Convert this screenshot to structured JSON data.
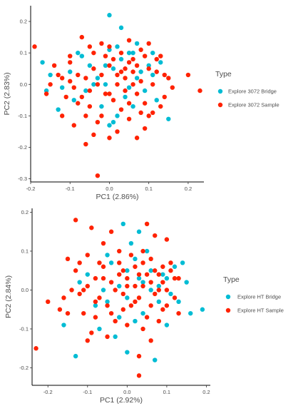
{
  "chart_data": [
    {
      "type": "scatter",
      "xlabel": "PC1 (2.86%)",
      "ylabel": "PC2 (2.83%)",
      "xlim": [
        -0.2,
        0.24
      ],
      "ylim": [
        -0.31,
        0.25
      ],
      "xticks": [
        -0.2,
        -0.1,
        0.0,
        0.1,
        0.2
      ],
      "xtick_labels": [
        "-0.2",
        "-0.1",
        "0.0",
        "0.1",
        "0.2"
      ],
      "yticks": [
        -0.3,
        -0.2,
        -0.1,
        0.0,
        0.1,
        0.2
      ],
      "ytick_labels": [
        "-0.3",
        "-0.2",
        "-0.1",
        "0.0",
        "0.1",
        "0.2"
      ],
      "legend": {
        "title": "Type",
        "position": "right"
      },
      "series": [
        {
          "name": "Explore 3072 Bridge",
          "color": "#00bcd4",
          "points": [
            [
              0.0,
              0.22
            ],
            [
              0.03,
              0.18
            ],
            [
              -0.17,
              0.07
            ],
            [
              -0.15,
              0.03
            ],
            [
              -0.12,
              -0.01
            ],
            [
              -0.1,
              0.04
            ],
            [
              -0.07,
              0.09
            ],
            [
              -0.05,
              0.06
            ],
            [
              -0.03,
              0.02
            ],
            [
              -0.01,
              0.0
            ],
            [
              0.01,
              0.05
            ],
            [
              0.03,
              0.08
            ],
            [
              0.05,
              0.1
            ],
            [
              0.07,
              0.02
            ],
            [
              0.09,
              -0.02
            ],
            [
              0.1,
              0.06
            ],
            [
              0.11,
              0.1
            ],
            [
              0.12,
              -0.05
            ],
            [
              0.15,
              -0.11
            ],
            [
              -0.13,
              -0.08
            ],
            [
              -0.09,
              -0.05
            ],
            [
              -0.06,
              -0.02
            ],
            [
              -0.04,
              0.0
            ],
            [
              0.0,
              -0.13
            ],
            [
              0.02,
              -0.1
            ],
            [
              0.04,
              -0.04
            ],
            [
              0.06,
              -0.07
            ],
            [
              0.08,
              0.04
            ],
            [
              -0.02,
              -0.07
            ],
            [
              0.01,
              -0.12
            ],
            [
              0.05,
              -0.01
            ],
            [
              0.02,
              0.12
            ],
            [
              -0.08,
              0.1
            ],
            [
              0.11,
              0.03
            ],
            [
              0.13,
              0.07
            ],
            [
              -0.16,
              -0.02
            ],
            [
              0.0,
              0.11
            ],
            [
              0.07,
              0.13
            ],
            [
              -0.01,
              0.06
            ],
            [
              0.06,
              0.1
            ]
          ]
        },
        {
          "name": "Explore 3072 Sample",
          "color": "#ff2200",
          "points": [
            [
              -0.19,
              0.12
            ],
            [
              -0.16,
              -0.03
            ],
            [
              -0.14,
              0.06
            ],
            [
              -0.12,
              0.02
            ],
            [
              -0.1,
              0.01
            ],
            [
              -0.08,
              -0.06
            ],
            [
              -0.06,
              -0.1
            ],
            [
              -0.04,
              -0.16
            ],
            [
              -0.02,
              -0.1
            ],
            [
              0.0,
              0.06
            ],
            [
              0.02,
              0.03
            ],
            [
              0.04,
              0.05
            ],
            [
              0.06,
              0.08
            ],
            [
              0.08,
              0.01
            ],
            [
              0.1,
              -0.1
            ],
            [
              0.12,
              0.04
            ],
            [
              0.14,
              0.03
            ],
            [
              0.16,
              -0.01
            ],
            [
              0.23,
              -0.02
            ],
            [
              0.2,
              0.03
            ],
            [
              -0.07,
              0.15
            ],
            [
              -0.04,
              0.1
            ],
            [
              -0.02,
              0.13
            ],
            [
              0.0,
              0.12
            ],
            [
              0.03,
              0.1
            ],
            [
              0.05,
              0.14
            ],
            [
              0.07,
              0.06
            ],
            [
              0.09,
              0.09
            ],
            [
              0.11,
              0.0
            ],
            [
              0.13,
              -0.07
            ],
            [
              -0.11,
              -0.04
            ],
            [
              -0.09,
              -0.01
            ],
            [
              -0.05,
              -0.07
            ],
            [
              -0.03,
              0.0
            ],
            [
              -0.01,
              -0.03
            ],
            [
              0.01,
              -0.05
            ],
            [
              0.03,
              -0.08
            ],
            [
              0.05,
              -0.11
            ],
            [
              0.07,
              -0.17
            ],
            [
              0.09,
              -0.14
            ],
            [
              -0.13,
              0.03
            ],
            [
              -0.1,
              0.07
            ],
            [
              -0.06,
              0.02
            ],
            [
              -0.03,
              -0.12
            ],
            [
              0.0,
              -0.17
            ],
            [
              0.02,
              0.0
            ],
            [
              0.04,
              -0.02
            ],
            [
              0.06,
              0.0
            ],
            [
              0.08,
              0.11
            ],
            [
              0.1,
              0.05
            ],
            [
              -0.08,
              0.03
            ],
            [
              -0.05,
              0.12
            ],
            [
              0.01,
              0.08
            ],
            [
              0.03,
              0.04
            ],
            [
              -0.01,
              0.09
            ],
            [
              0.05,
              -0.06
            ],
            [
              0.07,
              -0.03
            ],
            [
              0.09,
              -0.06
            ],
            [
              0.11,
              -0.09
            ],
            [
              0.14,
              -0.04
            ],
            [
              -0.06,
              -0.19
            ],
            [
              -0.12,
              -0.1
            ],
            [
              -0.15,
              0.0
            ],
            [
              -0.09,
              -0.13
            ],
            [
              0.0,
              -0.03
            ],
            [
              -0.04,
              0.05
            ],
            [
              0.06,
              0.04
            ],
            [
              0.1,
              0.13
            ],
            [
              0.12,
              0.08
            ],
            [
              0.02,
              -0.15
            ],
            [
              -0.02,
              0.03
            ],
            [
              0.04,
              0.02
            ],
            [
              -0.07,
              -0.04
            ],
            [
              0.08,
              -0.09
            ],
            [
              -0.05,
              -0.02
            ],
            [
              -0.03,
              -0.29
            ],
            [
              0.13,
              0.09
            ],
            [
              0.15,
              0.02
            ],
            [
              -0.1,
              0.09
            ],
            [
              0.05,
              0.07
            ]
          ]
        }
      ]
    },
    {
      "type": "scatter",
      "xlabel": "PC1 (2.92%)",
      "ylabel": "PC2 (2.84%)",
      "xlim": [
        -0.24,
        0.21
      ],
      "ylim": [
        -0.245,
        0.21
      ],
      "xticks": [
        -0.2,
        -0.1,
        0.0,
        0.1,
        0.2
      ],
      "xtick_labels": [
        "-0.2",
        "-0.1",
        "0.0",
        "0.1",
        "0.2"
      ],
      "yticks": [
        -0.2,
        -0.1,
        0.0,
        0.1,
        0.2
      ],
      "ytick_labels": [
        "-0.2",
        "-0.1",
        "0.0",
        "0.1",
        "0.2"
      ],
      "legend": {
        "title": "Type",
        "position": "right"
      },
      "series": [
        {
          "name": "Explore HT Bridge",
          "color": "#00bcd4",
          "points": [
            [
              -0.16,
              -0.09
            ],
            [
              -0.13,
              -0.17
            ],
            [
              -0.07,
              -0.1
            ],
            [
              -0.05,
              -0.03
            ],
            [
              -0.02,
              0.01
            ],
            [
              0.0,
              0.05
            ],
            [
              0.02,
              0.08
            ],
            [
              0.04,
              0.02
            ],
            [
              0.06,
              0.05
            ],
            [
              0.08,
              -0.03
            ],
            [
              0.1,
              0.03
            ],
            [
              0.12,
              0.06
            ],
            [
              0.14,
              0.07
            ],
            [
              0.16,
              -0.06
            ],
            [
              0.19,
              -0.05
            ],
            [
              -0.1,
              0.04
            ],
            [
              -0.12,
              0.02
            ],
            [
              -0.03,
              -0.12
            ],
            [
              0.0,
              -0.16
            ],
            [
              0.02,
              -0.08
            ],
            [
              0.04,
              -0.06
            ],
            [
              0.06,
              0.0
            ],
            [
              0.08,
              0.01
            ],
            [
              -0.01,
              0.17
            ],
            [
              0.03,
              0.15
            ],
            [
              -0.06,
              0.0
            ],
            [
              0.1,
              -0.09
            ],
            [
              0.13,
              -0.03
            ],
            [
              0.07,
              -0.18
            ],
            [
              0.05,
              0.1
            ],
            [
              -0.04,
              0.07
            ],
            [
              0.0,
              -0.02
            ],
            [
              0.03,
              0.03
            ],
            [
              0.09,
              0.04
            ],
            [
              -0.08,
              -0.04
            ],
            [
              0.11,
              -0.01
            ],
            [
              -0.02,
              -0.07
            ],
            [
              0.15,
              0.02
            ],
            [
              0.01,
              0.12
            ],
            [
              -0.05,
              0.09
            ]
          ]
        },
        {
          "name": "Explore HT Sample",
          "color": "#ff2200",
          "points": [
            [
              -0.23,
              -0.15
            ],
            [
              -0.2,
              -0.03
            ],
            [
              -0.17,
              -0.05
            ],
            [
              -0.15,
              0.08
            ],
            [
              -0.14,
              0.0
            ],
            [
              -0.13,
              0.05
            ],
            [
              -0.12,
              -0.01
            ],
            [
              -0.11,
              -0.06
            ],
            [
              -0.1,
              0.01
            ],
            [
              -0.09,
              -0.11
            ],
            [
              -0.08,
              0.03
            ],
            [
              -0.07,
              -0.02
            ],
            [
              -0.06,
              0.06
            ],
            [
              -0.05,
              -0.04
            ],
            [
              -0.04,
              0.02
            ],
            [
              -0.03,
              -0.08
            ],
            [
              -0.02,
              0.04
            ],
            [
              -0.01,
              -0.01
            ],
            [
              0.0,
              0.03
            ],
            [
              0.01,
              -0.04
            ],
            [
              0.02,
              0.06
            ],
            [
              0.03,
              -0.02
            ],
            [
              0.04,
              0.07
            ],
            [
              0.05,
              -0.07
            ],
            [
              0.06,
              0.02
            ],
            [
              0.07,
              -0.01
            ],
            [
              0.08,
              0.04
            ],
            [
              0.09,
              -0.05
            ],
            [
              0.1,
              0.0
            ],
            [
              0.11,
              0.05
            ],
            [
              0.12,
              -0.02
            ],
            [
              0.13,
              0.03
            ],
            [
              -0.13,
              0.18
            ],
            [
              -0.09,
              0.16
            ],
            [
              -0.04,
              0.15
            ],
            [
              0.05,
              0.17
            ],
            [
              0.07,
              0.14
            ],
            [
              -0.1,
              0.09
            ],
            [
              -0.06,
              0.12
            ],
            [
              -0.02,
              0.1
            ],
            [
              0.02,
              0.01
            ],
            [
              0.04,
              -0.1
            ],
            [
              0.06,
              -0.13
            ],
            [
              0.03,
              -0.17
            ],
            [
              0.03,
              -0.22
            ],
            [
              -0.1,
              -0.13
            ],
            [
              -0.08,
              -0.07
            ],
            [
              -0.05,
              -0.12
            ],
            [
              -0.15,
              -0.06
            ],
            [
              0.1,
              0.13
            ],
            [
              0.11,
              0.07
            ],
            [
              0.13,
              -0.06
            ],
            [
              0.09,
              0.06
            ],
            [
              0.07,
              0.05
            ],
            [
              -0.01,
              0.05
            ],
            [
              0.0,
              -0.09
            ],
            [
              0.01,
              0.09
            ],
            [
              -0.03,
              0.0
            ],
            [
              -0.07,
              0.07
            ],
            [
              0.08,
              -0.08
            ],
            [
              0.05,
              0.04
            ],
            [
              0.06,
              0.08
            ],
            [
              -0.12,
              0.07
            ],
            [
              0.12,
              0.03
            ],
            [
              -0.04,
              -0.06
            ],
            [
              0.02,
              -0.03
            ],
            [
              0.04,
              0.01
            ],
            [
              -0.08,
              -0.03
            ],
            [
              0.03,
              0.04
            ],
            [
              -0.01,
              -0.05
            ],
            [
              0.08,
              0.0
            ],
            [
              -0.06,
              0.03
            ],
            [
              0.1,
              -0.04
            ],
            [
              0.0,
              0.01
            ],
            [
              -0.02,
              0.07
            ],
            [
              0.06,
              -0.04
            ],
            [
              -0.16,
              -0.02
            ],
            [
              0.04,
              0.1
            ],
            [
              -0.11,
              0.0
            ],
            [
              0.09,
              0.02
            ]
          ]
        }
      ]
    }
  ]
}
